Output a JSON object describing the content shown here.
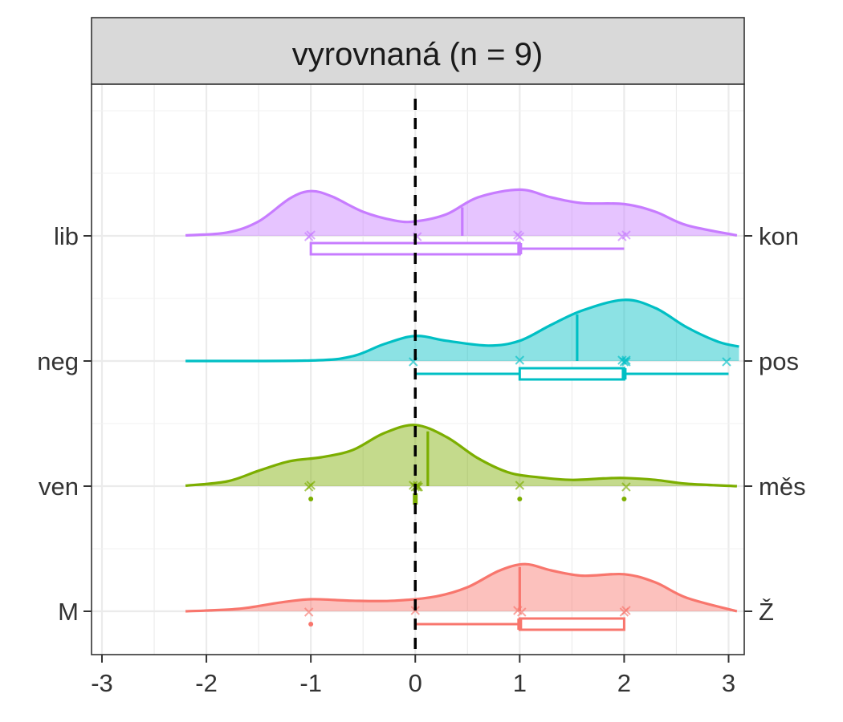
{
  "chart_data": {
    "type": "ridgeline",
    "facet_title": "vyrovnaná (n = 9)",
    "xlim": [
      -3.1,
      3.15
    ],
    "x_ticks": [
      "-3",
      "-2",
      "-1",
      "0",
      "1",
      "2",
      "3"
    ],
    "x_tick_values": [
      -3,
      -2,
      -1,
      0,
      1,
      2,
      3
    ],
    "reference_line_x": 0,
    "grid": true,
    "rows": [
      {
        "left_label": "lib",
        "right_label": "kon",
        "color": "#C77CFF",
        "mean": 0.45,
        "points": [
          -1,
          -1,
          0,
          1,
          1,
          2,
          2
        ],
        "box": {
          "min": -1,
          "q1": -1,
          "median": 1,
          "q3": 1,
          "max": 2
        },
        "outliers": [],
        "density": [
          [
            -2.2,
            0.01
          ],
          [
            -1.8,
            0.07
          ],
          [
            -1.5,
            0.3
          ],
          [
            -1.2,
            0.78
          ],
          [
            -1.0,
            0.93
          ],
          [
            -0.8,
            0.82
          ],
          [
            -0.5,
            0.5
          ],
          [
            -0.2,
            0.32
          ],
          [
            0.0,
            0.3
          ],
          [
            0.3,
            0.45
          ],
          [
            0.6,
            0.8
          ],
          [
            1.0,
            0.96
          ],
          [
            1.3,
            0.8
          ],
          [
            1.6,
            0.68
          ],
          [
            2.0,
            0.66
          ],
          [
            2.3,
            0.5
          ],
          [
            2.6,
            0.22
          ],
          [
            3.08,
            0.01
          ]
        ]
      },
      {
        "left_label": "neg",
        "right_label": "pos",
        "color": "#00BFC4",
        "mean": 1.55,
        "points": [
          0,
          1,
          2,
          2,
          2,
          2,
          3
        ],
        "box": {
          "min": 0,
          "q1": 1,
          "median": 2,
          "q3": 2,
          "max": 3
        },
        "outliers": [],
        "density": [
          [
            -2.2,
            0.0
          ],
          [
            -1.0,
            0.01
          ],
          [
            -0.6,
            0.1
          ],
          [
            -0.3,
            0.35
          ],
          [
            0.0,
            0.52
          ],
          [
            0.3,
            0.42
          ],
          [
            0.7,
            0.32
          ],
          [
            1.0,
            0.42
          ],
          [
            1.3,
            0.75
          ],
          [
            1.6,
            1.05
          ],
          [
            2.0,
            1.27
          ],
          [
            2.3,
            1.1
          ],
          [
            2.6,
            0.7
          ],
          [
            2.9,
            0.4
          ],
          [
            3.1,
            0.3
          ]
        ]
      },
      {
        "left_label": "ven",
        "right_label": "měs",
        "color": "#7CAE00",
        "mean": 0.12,
        "points": [
          -1,
          -1,
          0,
          0,
          0,
          0,
          0.05,
          1,
          2
        ],
        "box": {
          "min": 0,
          "q1": 0,
          "median": 0,
          "q3": 0,
          "max": 0
        },
        "outliers": [
          -1,
          1,
          2
        ],
        "density": [
          [
            -2.2,
            0.01
          ],
          [
            -1.8,
            0.1
          ],
          [
            -1.5,
            0.32
          ],
          [
            -1.2,
            0.52
          ],
          [
            -0.9,
            0.6
          ],
          [
            -0.6,
            0.75
          ],
          [
            -0.3,
            1.1
          ],
          [
            0.0,
            1.27
          ],
          [
            0.3,
            1.02
          ],
          [
            0.6,
            0.58
          ],
          [
            0.9,
            0.28
          ],
          [
            1.2,
            0.18
          ],
          [
            1.5,
            0.13
          ],
          [
            1.8,
            0.16
          ],
          [
            2.0,
            0.17
          ],
          [
            2.3,
            0.13
          ],
          [
            2.6,
            0.05
          ],
          [
            3.08,
            0.0
          ]
        ]
      },
      {
        "left_label": "M",
        "right_label": "Ž",
        "color": "#F8766D",
        "mean": 1.0,
        "points": [
          -1,
          0,
          1,
          1,
          2,
          2
        ],
        "box": {
          "min": 0,
          "q1": 1,
          "median": 1,
          "q3": 2,
          "max": 2
        },
        "outliers": [
          -1
        ],
        "density": [
          [
            -2.2,
            0.0
          ],
          [
            -1.7,
            0.05
          ],
          [
            -1.3,
            0.18
          ],
          [
            -1.0,
            0.25
          ],
          [
            -0.6,
            0.22
          ],
          [
            -0.2,
            0.22
          ],
          [
            0.2,
            0.31
          ],
          [
            0.5,
            0.5
          ],
          [
            0.8,
            0.84
          ],
          [
            1.05,
            0.98
          ],
          [
            1.3,
            0.85
          ],
          [
            1.6,
            0.74
          ],
          [
            2.0,
            0.77
          ],
          [
            2.3,
            0.6
          ],
          [
            2.6,
            0.28
          ],
          [
            3.08,
            0.0
          ]
        ]
      }
    ]
  }
}
